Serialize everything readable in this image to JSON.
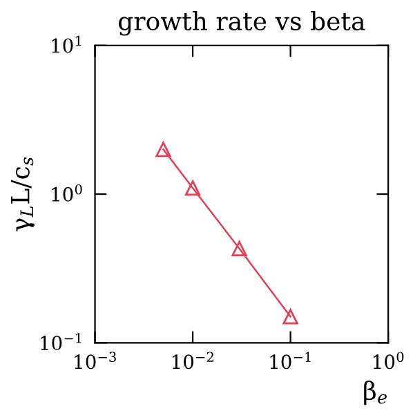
{
  "chart_data": {
    "type": "line",
    "title": "growth rate vs beta",
    "xlabel": "β$_{e}$",
    "ylabel": "γ$_{L}$L/c$_{s}$",
    "x": [
      0.005,
      0.01,
      0.03,
      0.1
    ],
    "series": [
      {
        "color": "#e0405a",
        "values": [
          2.0,
          1.1,
          0.43,
          0.15
        ]
      }
    ],
    "log": "xy",
    "marker": "triangle",
    "line_style": "solid",
    "grid": false,
    "legend": false,
    "xlim": [
      0.001,
      1
    ],
    "ylim": [
      0.1,
      10
    ],
    "xticks": [
      {
        "value": 0.001,
        "label": "10$^{−3}$"
      },
      {
        "value": 0.01,
        "label": "10$^{−2}$"
      },
      {
        "value": 0.1,
        "label": "10$^{−1}$"
      },
      {
        "value": 1,
        "label": "10$^{0}$"
      }
    ],
    "yticks": [
      {
        "value": 0.1,
        "label": "10$^{−1}$"
      },
      {
        "value": 1,
        "label": "10$^{0}$"
      },
      {
        "value": 10,
        "label": "10$^{1}$"
      }
    ]
  }
}
